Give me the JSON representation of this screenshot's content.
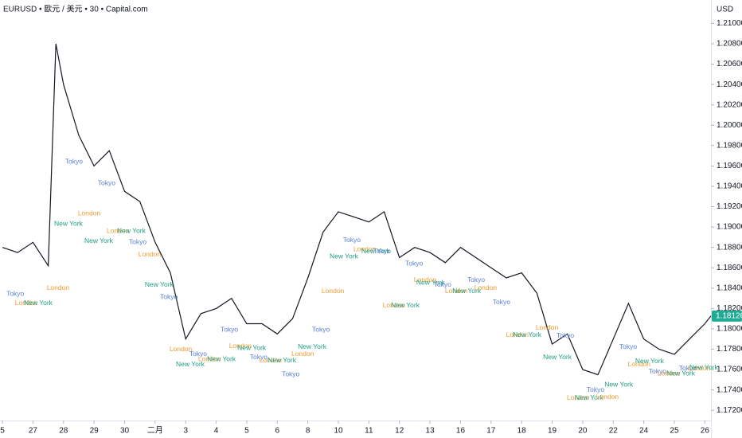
{
  "chart_data": {
    "type": "line",
    "title": "EURUSD • 歐元 / 美元 • 30 • Capital.com",
    "currency": "USD",
    "x": [
      0,
      0.5,
      1,
      1.5,
      1.75,
      2,
      2.5,
      3,
      3.5,
      4,
      4.5,
      5,
      5.5,
      6,
      6.5,
      7,
      7.5,
      8,
      8.5,
      9,
      9.5,
      10,
      10.5,
      11,
      11.5,
      12,
      12.5,
      13,
      13.5,
      14,
      14.5,
      15,
      15.5,
      16,
      16.5,
      17,
      17.5,
      18,
      18.5,
      19,
      19.5,
      20,
      20.5,
      21,
      21.5,
      22,
      22.5,
      23,
      23.2
    ],
    "series": [
      {
        "name": "EURUSD",
        "color": "#131722",
        "values": [
          1.188,
          1.1875,
          1.1885,
          1.1862,
          1.208,
          1.204,
          1.199,
          1.196,
          1.1975,
          1.1935,
          1.1925,
          1.1885,
          1.1855,
          1.179,
          1.1815,
          1.182,
          1.183,
          1.1805,
          1.1805,
          1.1795,
          1.181,
          1.185,
          1.1895,
          1.1915,
          1.191,
          1.1905,
          1.1915,
          1.187,
          1.188,
          1.1875,
          1.1865,
          1.188,
          1.187,
          1.186,
          1.185,
          1.1855,
          1.1835,
          1.1785,
          1.1795,
          1.176,
          1.1755,
          1.179,
          1.1825,
          1.179,
          1.178,
          1.1775,
          1.179,
          1.1805,
          1.18126
        ]
      }
    ],
    "last_price": {
      "value": 1.18126,
      "label": "1.18126"
    },
    "last_price_color": "#22ab94",
    "xlim": [
      -0.08,
      23.2
    ],
    "ylim": [
      1.171,
      1.2123
    ],
    "xticks": [
      {
        "value": 0,
        "label": "5"
      },
      {
        "value": 1,
        "label": "27"
      },
      {
        "value": 2,
        "label": "28"
      },
      {
        "value": 3,
        "label": "29"
      },
      {
        "value": 4,
        "label": "30"
      },
      {
        "value": 5,
        "label": "二月"
      },
      {
        "value": 6,
        "label": "3"
      },
      {
        "value": 7,
        "label": "4"
      },
      {
        "value": 8,
        "label": "5"
      },
      {
        "value": 9,
        "label": "6"
      },
      {
        "value": 10,
        "label": "8"
      },
      {
        "value": 11,
        "label": "10"
      },
      {
        "value": 12,
        "label": "11"
      },
      {
        "value": 13,
        "label": "12"
      },
      {
        "value": 14,
        "label": "13"
      },
      {
        "value": 15,
        "label": "16"
      },
      {
        "value": 16,
        "label": "17"
      },
      {
        "value": 17,
        "label": "18"
      },
      {
        "value": 18,
        "label": "19"
      },
      {
        "value": 19,
        "label": "20"
      },
      {
        "value": 20,
        "label": "22"
      },
      {
        "value": 21,
        "label": "24"
      },
      {
        "value": 22,
        "label": "25"
      },
      {
        "value": 23,
        "label": "26"
      }
    ],
    "yticks": [
      {
        "value": 1.21,
        "label": "1.21000"
      },
      {
        "value": 1.208,
        "label": "1.20800"
      },
      {
        "value": 1.206,
        "label": "1.20600"
      },
      {
        "value": 1.204,
        "label": "1.20400"
      },
      {
        "value": 1.202,
        "label": "1.20200"
      },
      {
        "value": 1.2,
        "label": "1.20000"
      },
      {
        "value": 1.198,
        "label": "1.19800"
      },
      {
        "value": 1.196,
        "label": "1.19600"
      },
      {
        "value": 1.194,
        "label": "1.19400"
      },
      {
        "value": 1.192,
        "label": "1.19200"
      },
      {
        "value": 1.19,
        "label": "1.19000"
      },
      {
        "value": 1.188,
        "label": "1.18800"
      },
      {
        "value": 1.186,
        "label": "1.18600"
      },
      {
        "value": 1.184,
        "label": "1.18400"
      },
      {
        "value": 1.182,
        "label": "1.18200"
      },
      {
        "value": 1.18,
        "label": "1.18000"
      },
      {
        "value": 1.178,
        "label": "1.17800"
      },
      {
        "value": 1.176,
        "label": "1.17600"
      },
      {
        "value": 1.174,
        "label": "1.17400"
      },
      {
        "value": 1.172,
        "label": "1.17200"
      }
    ],
    "grid": false,
    "session_colors": {
      "Tokyo": "#5b7fd6",
      "London": "#f29b32",
      "New York": "#1e9e84"
    },
    "annotations": [
      {
        "text": "Tokyo",
        "x": 0.42,
        "y": 1.1834
      },
      {
        "text": "London",
        "x": 0.78,
        "y": 1.1825
      },
      {
        "text": "New York",
        "x": 1.17,
        "y": 1.1825
      },
      {
        "text": "London",
        "x": 1.82,
        "y": 1.184
      },
      {
        "text": "New York",
        "x": 2.16,
        "y": 1.1903
      },
      {
        "text": "Tokyo",
        "x": 2.34,
        "y": 1.1964
      },
      {
        "text": "London",
        "x": 2.84,
        "y": 1.1913
      },
      {
        "text": "New York",
        "x": 3.15,
        "y": 1.1886
      },
      {
        "text": "Tokyo",
        "x": 3.41,
        "y": 1.1943
      },
      {
        "text": "London",
        "x": 3.78,
        "y": 1.1896
      },
      {
        "text": "New York",
        "x": 4.22,
        "y": 1.1896
      },
      {
        "text": "Tokyo",
        "x": 4.43,
        "y": 1.1885
      },
      {
        "text": "London",
        "x": 4.82,
        "y": 1.1873
      },
      {
        "text": "New York",
        "x": 5.13,
        "y": 1.1843
      },
      {
        "text": "Tokyo",
        "x": 5.45,
        "y": 1.1831
      },
      {
        "text": "London",
        "x": 5.84,
        "y": 1.178
      },
      {
        "text": "New York",
        "x": 6.15,
        "y": 1.1765
      },
      {
        "text": "Tokyo",
        "x": 6.41,
        "y": 1.1775
      },
      {
        "text": "London",
        "x": 6.78,
        "y": 1.177
      },
      {
        "text": "New York",
        "x": 7.17,
        "y": 1.177
      },
      {
        "text": "Tokyo",
        "x": 7.43,
        "y": 1.1799
      },
      {
        "text": "London",
        "x": 7.79,
        "y": 1.1783
      },
      {
        "text": "New York",
        "x": 8.16,
        "y": 1.1781
      },
      {
        "text": "Tokyo",
        "x": 8.39,
        "y": 1.1772
      },
      {
        "text": "London",
        "x": 8.78,
        "y": 1.1769
      },
      {
        "text": "New York",
        "x": 9.15,
        "y": 1.1769
      },
      {
        "text": "Tokyo",
        "x": 9.44,
        "y": 1.1755
      },
      {
        "text": "London",
        "x": 9.83,
        "y": 1.1775
      },
      {
        "text": "New York",
        "x": 10.14,
        "y": 1.1782
      },
      {
        "text": "Tokyo",
        "x": 10.43,
        "y": 1.1799
      },
      {
        "text": "London",
        "x": 10.82,
        "y": 1.1837
      },
      {
        "text": "New York",
        "x": 11.18,
        "y": 1.1871
      },
      {
        "text": "Tokyo",
        "x": 11.44,
        "y": 1.1887
      },
      {
        "text": "London",
        "x": 11.86,
        "y": 1.1878
      },
      {
        "text": "New York",
        "x": 12.22,
        "y": 1.1876
      },
      {
        "text": "Tokyo",
        "x": 12.43,
        "y": 1.1876
      },
      {
        "text": "London",
        "x": 12.82,
        "y": 1.1823
      },
      {
        "text": "New York",
        "x": 13.19,
        "y": 1.1823
      },
      {
        "text": "Tokyo",
        "x": 13.48,
        "y": 1.1864
      },
      {
        "text": "London",
        "x": 13.84,
        "y": 1.1848
      },
      {
        "text": "New York",
        "x": 14.02,
        "y": 1.1845
      },
      {
        "text": "Tokyo",
        "x": 14.41,
        "y": 1.1843
      },
      {
        "text": "London",
        "x": 14.86,
        "y": 1.1837
      },
      {
        "text": "New York",
        "x": 15.2,
        "y": 1.1837
      },
      {
        "text": "Tokyo",
        "x": 15.51,
        "y": 1.1848
      },
      {
        "text": "London",
        "x": 15.82,
        "y": 1.184
      },
      {
        "text": "Tokyo",
        "x": 16.34,
        "y": 1.1826
      },
      {
        "text": "London",
        "x": 16.86,
        "y": 1.1794
      },
      {
        "text": "New York",
        "x": 17.18,
        "y": 1.1794
      },
      {
        "text": "London",
        "x": 17.83,
        "y": 1.1801
      },
      {
        "text": "New York",
        "x": 18.17,
        "y": 1.1772
      },
      {
        "text": "Tokyo",
        "x": 18.43,
        "y": 1.1793
      },
      {
        "text": "London",
        "x": 18.85,
        "y": 1.1732
      },
      {
        "text": "New York",
        "x": 19.21,
        "y": 1.1732
      },
      {
        "text": "Tokyo",
        "x": 19.42,
        "y": 1.174
      },
      {
        "text": "London",
        "x": 19.81,
        "y": 1.1733
      },
      {
        "text": "New York",
        "x": 20.18,
        "y": 1.1745
      },
      {
        "text": "Tokyo",
        "x": 20.49,
        "y": 1.1782
      },
      {
        "text": "London",
        "x": 20.85,
        "y": 1.1765
      },
      {
        "text": "New York",
        "x": 21.19,
        "y": 1.1768
      },
      {
        "text": "Tokyo",
        "x": 21.45,
        "y": 1.1758
      },
      {
        "text": "London",
        "x": 21.82,
        "y": 1.1756
      },
      {
        "text": "New York",
        "x": 22.21,
        "y": 1.1756
      },
      {
        "text": "Tokyo",
        "x": 22.44,
        "y": 1.1761
      },
      {
        "text": "London",
        "x": 22.81,
        "y": 1.1761
      },
      {
        "text": "New York",
        "x": 22.96,
        "y": 1.1762
      }
    ]
  }
}
